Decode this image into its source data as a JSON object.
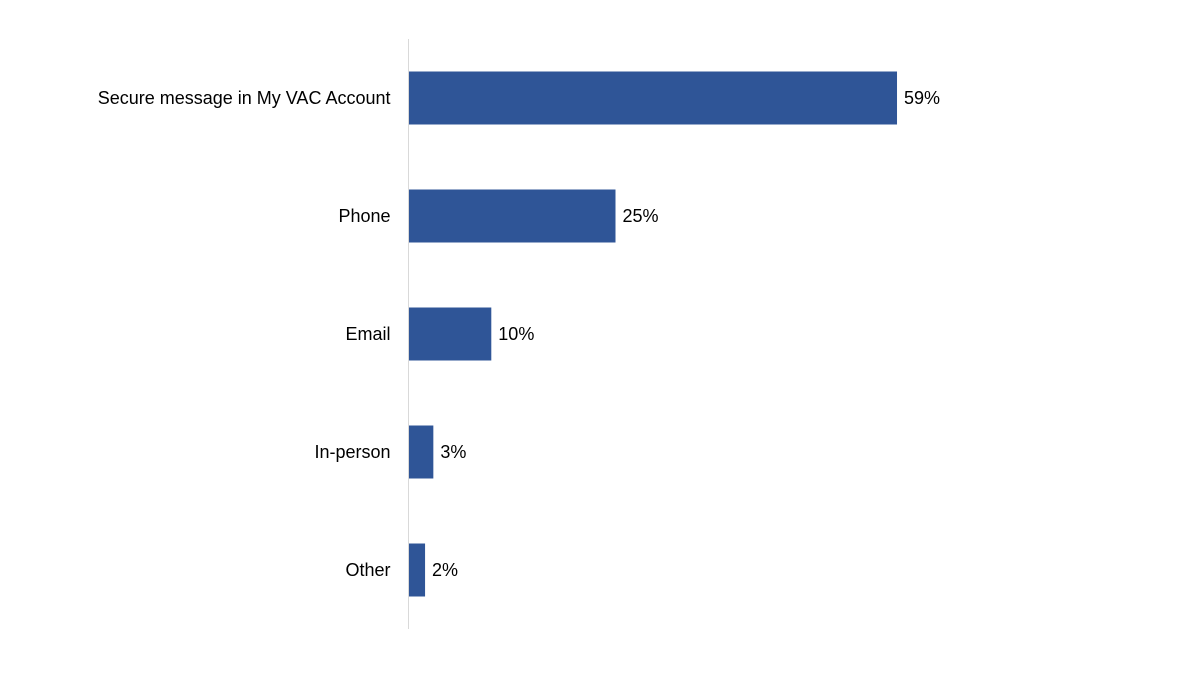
{
  "chart_data": {
    "type": "bar",
    "orientation": "horizontal",
    "categories": [
      "Secure message in My VAC Account",
      "Phone",
      "Email",
      "In-person",
      "Other"
    ],
    "values": [
      59,
      25,
      10,
      3,
      2
    ],
    "value_labels": [
      "59%",
      "25%",
      "10%",
      "3%",
      "2%"
    ],
    "unit": "%",
    "title": "",
    "xlabel": "",
    "ylabel": "",
    "xlim": [
      0,
      100
    ],
    "grid": false,
    "legend": "none",
    "bar_color": "#2f5597",
    "axis_color": "#d9d9d9"
  }
}
